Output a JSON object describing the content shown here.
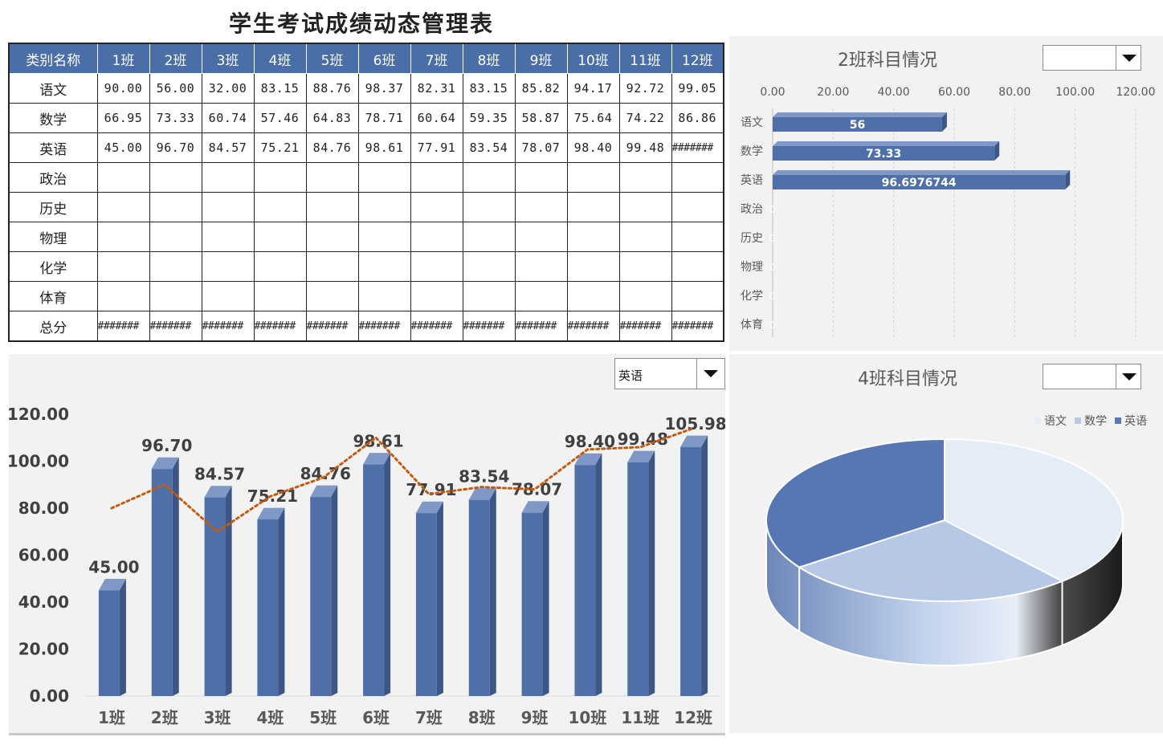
{
  "title": "学生考试成绩动态管理表",
  "table": {
    "header_corner": "类别名称",
    "classes": [
      "1班",
      "2班",
      "3班",
      "4班",
      "5班",
      "6班",
      "7班",
      "8班",
      "9班",
      "10班",
      "11班",
      "12班"
    ],
    "rows": [
      {
        "name": "语文",
        "cells": [
          "90.00",
          "56.00",
          "32.00",
          "83.15",
          "88.76",
          "98.37",
          "82.31",
          "83.15",
          "85.82",
          "94.17",
          "92.72",
          "99.05"
        ]
      },
      {
        "name": "数学",
        "cells": [
          "66.95",
          "73.33",
          "60.74",
          "57.46",
          "64.83",
          "78.71",
          "60.64",
          "59.35",
          "58.87",
          "75.64",
          "74.22",
          "86.86"
        ]
      },
      {
        "name": "英语",
        "cells": [
          "45.00",
          "96.70",
          "84.57",
          "75.21",
          "84.76",
          "98.61",
          "77.91",
          "83.54",
          "78.07",
          "98.40",
          "99.48",
          "#######"
        ]
      },
      {
        "name": "政治",
        "cells": [
          "",
          "",
          "",
          "",
          "",
          "",
          "",
          "",
          "",
          "",
          "",
          ""
        ]
      },
      {
        "name": "历史",
        "cells": [
          "",
          "",
          "",
          "",
          "",
          "",
          "",
          "",
          "",
          "",
          "",
          ""
        ]
      },
      {
        "name": "物理",
        "cells": [
          "",
          "",
          "",
          "",
          "",
          "",
          "",
          "",
          "",
          "",
          "",
          ""
        ]
      },
      {
        "name": "化学",
        "cells": [
          "",
          "",
          "",
          "",
          "",
          "",
          "",
          "",
          "",
          "",
          "",
          ""
        ]
      },
      {
        "name": "体育",
        "cells": [
          "",
          "",
          "",
          "",
          "",
          "",
          "",
          "",
          "",
          "",
          "",
          ""
        ]
      },
      {
        "name": "总分",
        "cells": [
          "#######",
          "#######",
          "#######",
          "#######",
          "#######",
          "#######",
          "#######",
          "#######",
          "#######",
          "#######",
          "#######",
          "#######"
        ]
      }
    ]
  },
  "bar_panel": {
    "title": "2班科目情况",
    "dropdown_value": ""
  },
  "pie_panel": {
    "title": "4班科目情况",
    "dropdown_value": ""
  },
  "column_panel": {
    "dropdown_value": "英语"
  },
  "colors": {
    "header_blue": "#4a6ea8",
    "bar_blue": "#4f6fa8",
    "trend_orange": "#c55a11",
    "panel_bg": "#f2f2f2",
    "pie_light": "#e4ecf8",
    "pie_mid": "#b7c8e6",
    "pie_dark": "#5677b4"
  },
  "chart_data": [
    {
      "type": "bar",
      "orientation": "horizontal",
      "title": "2班科目情况",
      "categories": [
        "语文",
        "数学",
        "英语",
        "政治",
        "历史",
        "物理",
        "化学",
        "体育"
      ],
      "values": [
        56,
        73.33,
        96.6976744,
        0,
        0,
        0,
        0,
        0
      ],
      "data_labels": [
        "56",
        "73.33",
        "96.6976744",
        "0",
        "0",
        "0",
        "0",
        "0"
      ],
      "xlim": [
        0,
        120
      ],
      "x_ticks": [
        "0.00",
        "20.00",
        "40.00",
        "60.00",
        "80.00",
        "100.00",
        "120.00"
      ],
      "grid": true
    },
    {
      "type": "bar",
      "title": "",
      "categories": [
        "1班",
        "2班",
        "3班",
        "4班",
        "5班",
        "6班",
        "7班",
        "8班",
        "9班",
        "10班",
        "11班",
        "12班"
      ],
      "values": [
        45.0,
        96.7,
        84.57,
        75.21,
        84.76,
        98.61,
        77.91,
        83.54,
        78.07,
        98.4,
        99.48,
        105.98
      ],
      "data_labels": [
        "45.00",
        "96.70",
        "84.57",
        "75.21",
        "84.76",
        "98.61",
        "77.91",
        "83.54",
        "78.07",
        "98.40",
        "99.48",
        "105.98"
      ],
      "trend_line": [
        80,
        90,
        70,
        85,
        93,
        110,
        86,
        89,
        88,
        105,
        106,
        114
      ],
      "ylim": [
        0,
        120
      ],
      "y_ticks": [
        "0.00",
        "20.00",
        "40.00",
        "60.00",
        "80.00",
        "100.00",
        "120.00"
      ]
    },
    {
      "type": "pie",
      "title": "4班科目情况",
      "labels": [
        "语文",
        "数学",
        "英语"
      ],
      "values": [
        83.15,
        57.46,
        75.21
      ],
      "legend": "top-right"
    }
  ]
}
